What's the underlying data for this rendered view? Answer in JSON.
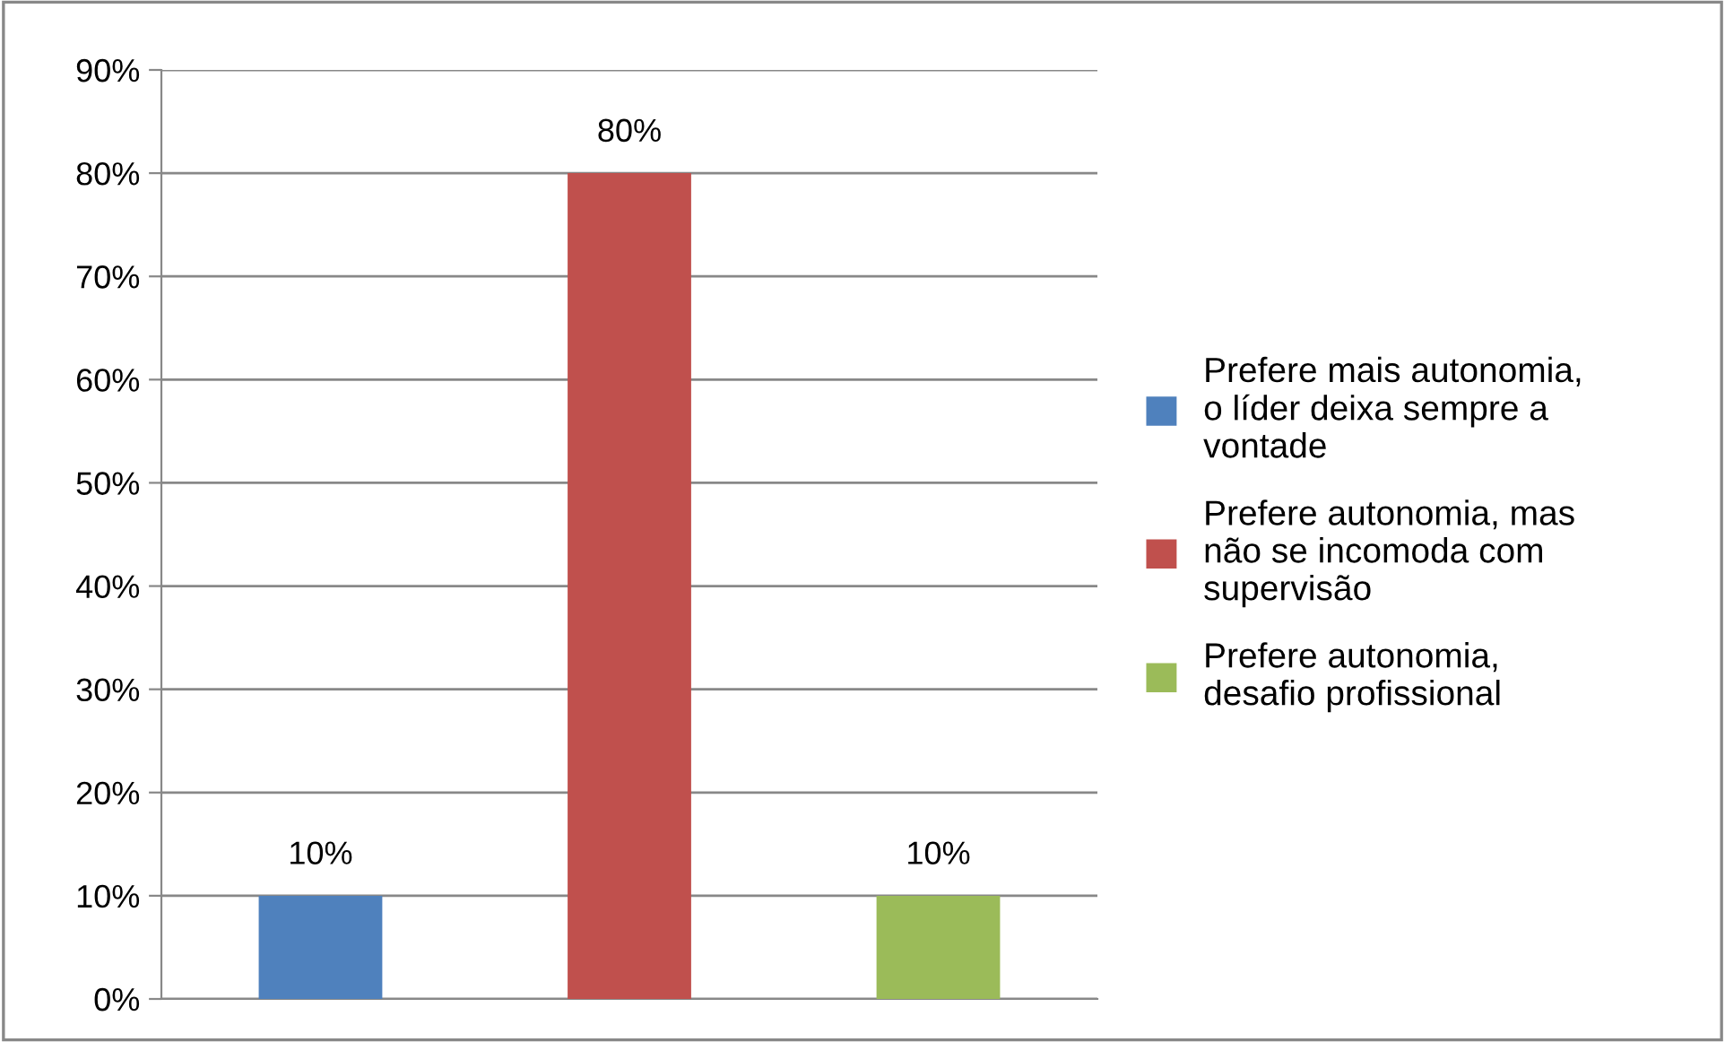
{
  "chart_data": {
    "type": "bar",
    "categories": [
      null
    ],
    "series": [
      {
        "name": "Prefere mais autonomia,\no líder deixa sempre a\nvontade",
        "color": "#4f81bd",
        "values": [
          10
        ],
        "value_labels": [
          "10%"
        ]
      },
      {
        "name": "Prefere autonomia, mas\nnão se incomoda com\nsupervisão",
        "color": "#c0504d",
        "values": [
          80
        ],
        "value_labels": [
          "80%"
        ]
      },
      {
        "name": "Prefere autonomia,\ndesafio profissional",
        "color": "#9bbb59",
        "values": [
          10
        ],
        "value_labels": [
          "10%"
        ]
      }
    ],
    "ylim": [
      0,
      90
    ],
    "yticks": [
      {
        "value": 0,
        "label": "0%"
      },
      {
        "value": 10,
        "label": "10%"
      },
      {
        "value": 20,
        "label": "20%"
      },
      {
        "value": 30,
        "label": "30%"
      },
      {
        "value": 40,
        "label": "40%"
      },
      {
        "value": 50,
        "label": "50%"
      },
      {
        "value": 60,
        "label": "60%"
      },
      {
        "value": 70,
        "label": "70%"
      },
      {
        "value": 80,
        "label": "80%"
      },
      {
        "value": 90,
        "label": "90%"
      }
    ],
    "grid": "y",
    "legend": "right"
  }
}
